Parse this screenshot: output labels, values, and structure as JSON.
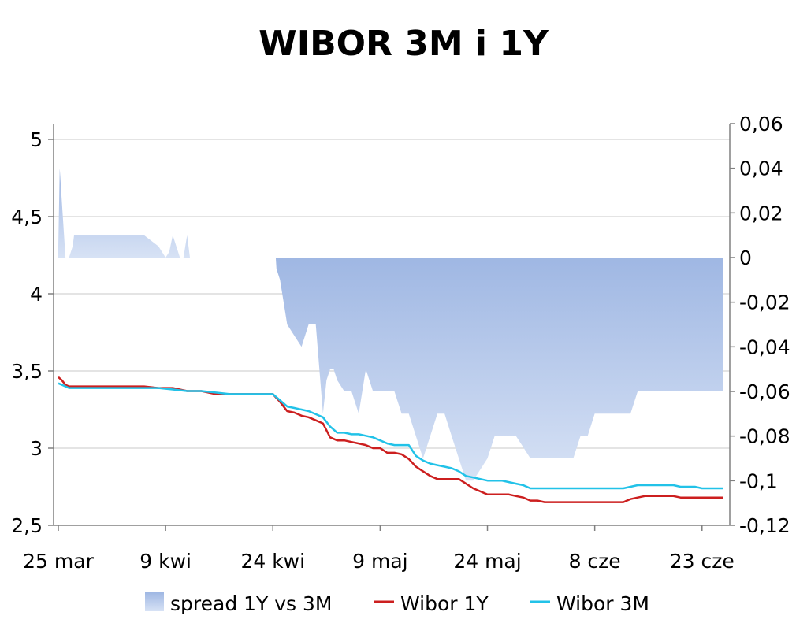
{
  "chart_data": {
    "type": "line",
    "title": "WIBOR 3M i 1Y",
    "x_tick_labels": [
      "25 mar",
      "9 kwi",
      "24 kwi",
      "9 maj",
      "24 maj",
      "8 cze",
      "23 cze"
    ],
    "x_tick_days": [
      0,
      15,
      30,
      45,
      60,
      75,
      90
    ],
    "x_days_range": [
      0,
      93
    ],
    "y_left": {
      "ylim": [
        2.5,
        5.0
      ],
      "ticks": [
        "2,5",
        "3",
        "3,5",
        "4",
        "4,5",
        "5"
      ],
      "tick_values": [
        2.5,
        3.0,
        3.5,
        4.0,
        4.5,
        5.0
      ]
    },
    "y_right": {
      "ylim": [
        -0.12,
        0.06
      ],
      "ticks": [
        "-0,12",
        "-0,1",
        "-0,08",
        "-0,06",
        "-0,04",
        "-0,02",
        "0",
        "0,02",
        "0,04",
        "0,06"
      ],
      "tick_values": [
        -0.12,
        -0.1,
        -0.08,
        -0.06,
        -0.04,
        -0.02,
        0.0,
        0.02,
        0.04,
        0.06
      ]
    },
    "grid": "horizontal",
    "legend_position": "bottom",
    "series": [
      {
        "name": "spread 1Y vs 3M",
        "type": "area",
        "axis": "right",
        "color": "#9db6e2",
        "x": [
          0,
          0.2,
          0.5,
          1,
          1.5,
          2,
          2.2,
          4,
          6,
          8,
          10,
          11,
          12,
          13,
          14,
          15,
          15.5,
          16,
          16.5,
          17,
          17.5,
          18,
          18.4,
          18.41,
          30,
          30.4,
          30.5,
          31,
          31.5,
          32,
          33,
          34,
          35,
          36,
          37,
          37.5,
          38,
          38.5,
          39,
          40,
          41,
          42,
          43,
          44,
          45,
          46,
          47,
          48,
          49,
          50,
          51,
          52,
          53,
          54,
          55,
          56,
          57,
          58,
          59,
          60,
          61,
          62,
          63,
          64,
          65,
          66,
          67,
          68,
          69,
          70,
          71,
          72,
          73,
          74,
          75,
          76,
          77,
          78,
          79,
          80,
          81,
          82,
          83,
          84,
          85,
          86,
          87,
          88,
          89,
          90,
          91,
          92,
          93
        ],
        "values": [
          0.005,
          0.04,
          0.025,
          0.0,
          0.0,
          0.005,
          0.01,
          0.01,
          0.01,
          0.01,
          0.01,
          0.01,
          0.01,
          0.0075,
          0.005,
          0.0,
          0.0025,
          0.01,
          0.005,
          0.0,
          0.0,
          0.01,
          0.0,
          null,
          0.0,
          0.0,
          -0.005,
          -0.01,
          -0.02,
          -0.03,
          -0.035,
          -0.04,
          -0.03,
          -0.03,
          -0.07,
          -0.055,
          -0.05,
          -0.05,
          -0.055,
          -0.06,
          -0.06,
          -0.07,
          -0.05,
          -0.06,
          -0.06,
          -0.06,
          -0.06,
          -0.07,
          -0.07,
          -0.08,
          -0.09,
          -0.08,
          -0.07,
          -0.07,
          -0.08,
          -0.09,
          -0.1,
          -0.1,
          -0.095,
          -0.09,
          -0.08,
          -0.08,
          -0.08,
          -0.08,
          -0.085,
          -0.09,
          -0.09,
          -0.09,
          -0.09,
          -0.09,
          -0.09,
          -0.09,
          -0.08,
          -0.08,
          -0.07,
          -0.07,
          -0.07,
          -0.07,
          -0.07,
          -0.07,
          -0.06,
          -0.06,
          -0.06,
          -0.06,
          -0.06,
          -0.06,
          -0.06,
          -0.06,
          -0.06,
          -0.06,
          -0.06,
          -0.06,
          -0.06
        ]
      },
      {
        "name": "Wibor 1Y",
        "type": "line",
        "axis": "left",
        "color": "#cc1f1f",
        "x": [
          0,
          0.5,
          1,
          1.5,
          2,
          4,
          6,
          8,
          10,
          12,
          14,
          16,
          18,
          20,
          22,
          24,
          26,
          28,
          30,
          31,
          32,
          33,
          34,
          35,
          36,
          37,
          38,
          39,
          40,
          41,
          42,
          43,
          44,
          45,
          46,
          47,
          48,
          49,
          50,
          51,
          52,
          53,
          54,
          55,
          56,
          57,
          58,
          59,
          60,
          61,
          62,
          63,
          64,
          65,
          66,
          67,
          68,
          69,
          70,
          71,
          72,
          73,
          74,
          75,
          76,
          77,
          78,
          79,
          80,
          81,
          82,
          83,
          84,
          85,
          86,
          87,
          88,
          89,
          90,
          91,
          92,
          93
        ],
        "values": [
          3.46,
          3.44,
          3.41,
          3.4,
          3.4,
          3.4,
          3.4,
          3.4,
          3.4,
          3.4,
          3.39,
          3.39,
          3.37,
          3.37,
          3.35,
          3.35,
          3.35,
          3.35,
          3.35,
          3.3,
          3.24,
          3.23,
          3.21,
          3.2,
          3.18,
          3.16,
          3.07,
          3.05,
          3.05,
          3.04,
          3.03,
          3.02,
          3.0,
          3.0,
          2.97,
          2.97,
          2.96,
          2.93,
          2.88,
          2.85,
          2.82,
          2.8,
          2.8,
          2.8,
          2.8,
          2.77,
          2.74,
          2.72,
          2.7,
          2.7,
          2.7,
          2.7,
          2.69,
          2.68,
          2.66,
          2.66,
          2.65,
          2.65,
          2.65,
          2.65,
          2.65,
          2.65,
          2.65,
          2.65,
          2.65,
          2.65,
          2.65,
          2.65,
          2.67,
          2.68,
          2.69,
          2.69,
          2.69,
          2.69,
          2.69,
          2.68,
          2.68,
          2.68,
          2.68,
          2.68,
          2.68,
          2.68
        ]
      },
      {
        "name": "Wibor 3M",
        "type": "line",
        "axis": "left",
        "color": "#22c2e8",
        "x": [
          0,
          0.5,
          1,
          1.5,
          2,
          4,
          6,
          8,
          10,
          12,
          14,
          16,
          18,
          20,
          22,
          24,
          26,
          28,
          30,
          31,
          32,
          33,
          34,
          35,
          36,
          37,
          38,
          39,
          40,
          41,
          42,
          43,
          44,
          45,
          46,
          47,
          48,
          49,
          50,
          51,
          52,
          53,
          54,
          55,
          56,
          57,
          58,
          59,
          60,
          61,
          62,
          63,
          64,
          65,
          66,
          67,
          68,
          69,
          70,
          71,
          72,
          73,
          74,
          75,
          76,
          77,
          78,
          79,
          80,
          81,
          82,
          83,
          84,
          85,
          86,
          87,
          88,
          89,
          90,
          91,
          92,
          93
        ],
        "values": [
          3.42,
          3.41,
          3.4,
          3.39,
          3.39,
          3.39,
          3.39,
          3.39,
          3.39,
          3.39,
          3.39,
          3.38,
          3.37,
          3.37,
          3.36,
          3.35,
          3.35,
          3.35,
          3.35,
          3.31,
          3.27,
          3.26,
          3.25,
          3.24,
          3.22,
          3.2,
          3.14,
          3.1,
          3.1,
          3.09,
          3.09,
          3.08,
          3.07,
          3.05,
          3.03,
          3.02,
          3.02,
          3.02,
          2.95,
          2.92,
          2.9,
          2.89,
          2.88,
          2.87,
          2.85,
          2.82,
          2.81,
          2.8,
          2.79,
          2.79,
          2.79,
          2.78,
          2.77,
          2.76,
          2.74,
          2.74,
          2.74,
          2.74,
          2.74,
          2.74,
          2.74,
          2.74,
          2.74,
          2.74,
          2.74,
          2.74,
          2.74,
          2.74,
          2.75,
          2.76,
          2.76,
          2.76,
          2.76,
          2.76,
          2.76,
          2.75,
          2.75,
          2.75,
          2.74,
          2.74,
          2.74,
          2.74
        ]
      }
    ]
  }
}
